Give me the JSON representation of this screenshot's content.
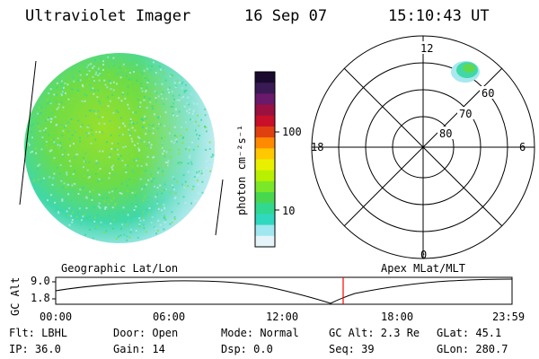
{
  "header": {
    "title": "Ultraviolet Imager",
    "date": "16 Sep 07",
    "time": "15:10:43 UT"
  },
  "colorbar": {
    "unit_label": "photon cm⁻²s⁻¹",
    "tick_labels": [
      "100",
      "10"
    ],
    "colors": [
      "#1a0a2e",
      "#3a1a55",
      "#6a1a6a",
      "#9a1040",
      "#c8102a",
      "#e04010",
      "#ff8a00",
      "#ffc800",
      "#e8f000",
      "#b8f000",
      "#7ae828",
      "#48d850",
      "#30d890",
      "#30d8c0",
      "#a0e8f0",
      "#e4f4f8"
    ]
  },
  "polar_plot": {
    "mlt_labels": {
      "top": "12",
      "left": "18",
      "right": "6",
      "bottom": "0"
    },
    "lat_labels": [
      "60",
      "70",
      "80"
    ]
  },
  "timeline": {
    "left_label": "Geographic Lat/Lon",
    "right_label": "Apex MLat/MLT",
    "axis_title": "GC Alt",
    "y_ticks": [
      "9.0",
      "1.8"
    ],
    "x_ticks": [
      "00:00",
      "06:00",
      "12:00",
      "18:00",
      "23:59"
    ],
    "current_marker_color": "#ff0000"
  },
  "info": {
    "filter": "Flt: LBHL",
    "ip": "IP: 36.0",
    "door": "Door: Open",
    "gain": "Gain: 14",
    "mode": "Mode: Normal",
    "dsp": "Dsp:    0.0",
    "gc_alt": "GC Alt: 2.3 Re",
    "seq": "Seq: 39",
    "glat": "GLat:  45.1",
    "glon": "GLon: 280.7"
  }
}
